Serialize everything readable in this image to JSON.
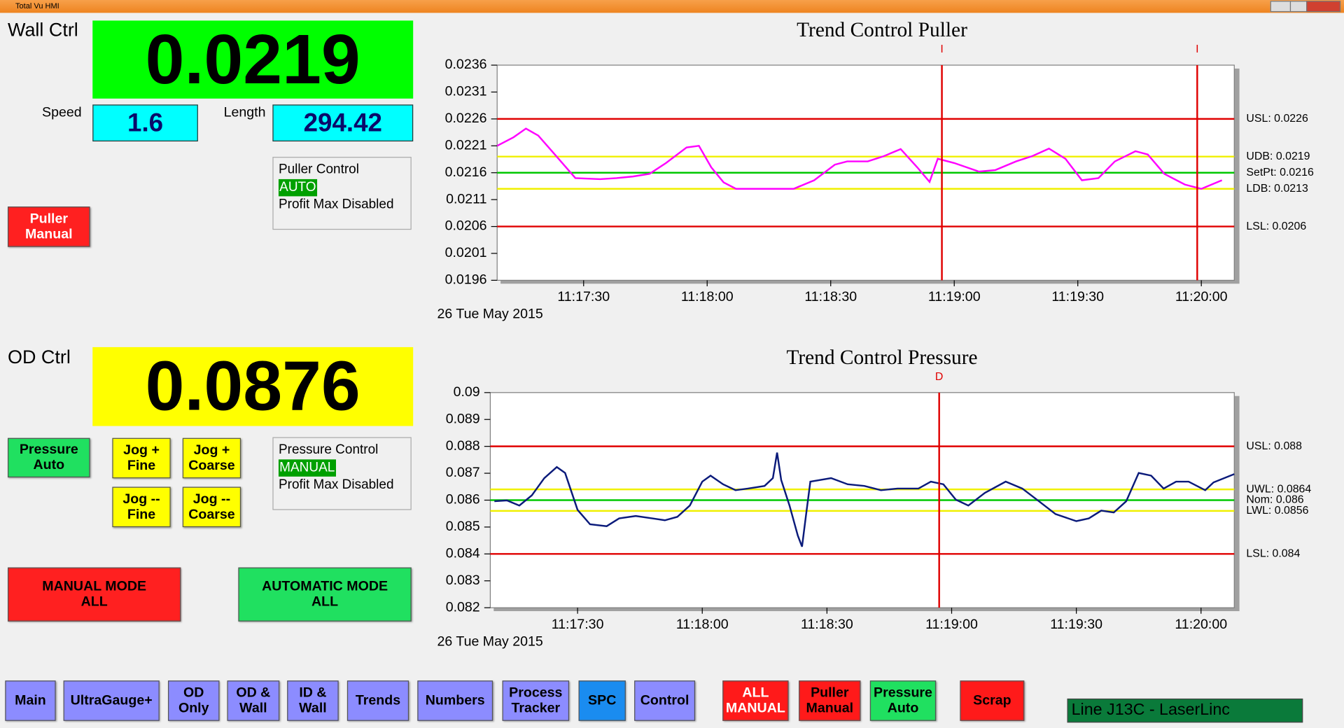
{
  "window": {
    "title": "Total Vu HMI"
  },
  "wall": {
    "label": "Wall Ctrl",
    "value": 0.0219,
    "speed_label": "Speed",
    "speed": 1.6,
    "length_label": "Length",
    "length": 294.42,
    "status": {
      "title": "Puller Control",
      "mode": "AUTO",
      "note": "Profit Max Disabled"
    },
    "button": [
      "Puller",
      "Manual"
    ]
  },
  "od": {
    "label": "OD Ctrl",
    "value": 0.0876,
    "status": {
      "title": "Pressure Control",
      "mode": "MANUAL",
      "note": "Profit Max Disabled"
    },
    "button": [
      "Pressure",
      "Auto"
    ],
    "jog": [
      [
        "Jog +",
        "Fine"
      ],
      [
        "Jog +",
        "Coarse"
      ],
      [
        "Jog --",
        "Fine"
      ],
      [
        "Jog --",
        "Coarse"
      ]
    ]
  },
  "modes": [
    [
      "MANUAL MODE",
      "ALL"
    ],
    [
      "AUTOMATIC MODE",
      "ALL"
    ]
  ],
  "nav": [
    [
      "Main"
    ],
    [
      "UltraGauge+"
    ],
    [
      "OD",
      "Only"
    ],
    [
      "OD &",
      "Wall"
    ],
    [
      "ID &",
      "Wall"
    ],
    [
      "Trends"
    ],
    [
      "Numbers"
    ],
    [
      "Process",
      "Tracker"
    ],
    [
      "SPC"
    ],
    [
      "Control"
    ]
  ],
  "actions": [
    [
      "ALL",
      "MANUAL"
    ],
    [
      "Puller",
      "Manual"
    ],
    [
      "Pressure",
      "Auto"
    ],
    [
      "Scrap"
    ]
  ],
  "line_label": "Line J13C - LaserLinc",
  "chart_data": [
    {
      "type": "line",
      "title": "Trend Control Puller",
      "date": "26 Tue May 2015",
      "color": "#ff00ff",
      "x": [
        "11:17:09",
        "11:17:13",
        "11:17:16",
        "11:17:19",
        "11:17:23",
        "11:17:28",
        "11:17:34",
        "11:17:38",
        "11:17:42",
        "11:17:46",
        "11:17:50",
        "11:17:55",
        "11:17:58",
        "11:18:01",
        "11:18:04",
        "11:18:07",
        "11:18:16",
        "11:18:21",
        "11:18:26",
        "11:18:31",
        "11:18:34",
        "11:18:39",
        "11:18:43",
        "11:18:47",
        "11:18:51",
        "11:18:54",
        "11:18:56",
        "11:19:00",
        "11:19:06",
        "11:19:10",
        "11:19:15",
        "11:19:19",
        "11:19:23",
        "11:19:27",
        "11:19:31",
        "11:19:35",
        "11:19:39",
        "11:19:44",
        "11:19:47",
        "11:19:51",
        "11:19:56",
        "11:20:00",
        "11:20:05"
      ],
      "values": [
        0.0221,
        0.02226,
        0.02242,
        0.02229,
        0.02194,
        0.0215,
        0.02148,
        0.0215,
        0.02153,
        0.02158,
        0.02178,
        0.02207,
        0.0221,
        0.0217,
        0.02142,
        0.0213,
        0.0213,
        0.0213,
        0.02146,
        0.02175,
        0.02181,
        0.02181,
        0.02191,
        0.02204,
        0.0217,
        0.02143,
        0.02186,
        0.02178,
        0.02162,
        0.02165,
        0.02181,
        0.02191,
        0.02205,
        0.02186,
        0.02146,
        0.0215,
        0.02181,
        0.022,
        0.02194,
        0.02158,
        0.02138,
        0.0213,
        0.02146
      ],
      "xlim": [
        "11:17:09",
        "11:20:08"
      ],
      "xticks": [
        "11:17:30",
        "11:18:00",
        "11:18:30",
        "11:19:00",
        "11:19:30",
        "11:20:00"
      ],
      "ylim": [
        0.0196,
        0.0236
      ],
      "yticks": [
        0.0236,
        0.0231,
        0.0226,
        0.0221,
        0.0216,
        0.0211,
        0.0206,
        0.0201,
        0.0196
      ],
      "limits": [
        {
          "label": "USL: 0.0226",
          "value": 0.0226,
          "color": "#e00000"
        },
        {
          "label": "UDB: 0.0219",
          "value": 0.0219,
          "color": "#f0f000"
        },
        {
          "label": "SetPt: 0.0216",
          "value": 0.0216,
          "color": "#00c800"
        },
        {
          "label": "LDB: 0.0213",
          "value": 0.0213,
          "color": "#f0f000"
        },
        {
          "label": "LSL: 0.0206",
          "value": 0.0206,
          "color": "#e00000"
        }
      ],
      "cursors": [
        {
          "x": "11:18:57",
          "label": "I"
        },
        {
          "x": "11:19:59",
          "label": "I"
        }
      ]
    },
    {
      "type": "line",
      "title": "Trend Control Pressure",
      "date": "26 Tue May 2015",
      "color": "#0a1a7a",
      "x": [
        "11:17:10",
        "11:17:13",
        "11:17:16",
        "11:17:19",
        "11:17:22",
        "11:17:25",
        "11:17:27",
        "11:17:30",
        "11:17:33",
        "11:17:37",
        "11:17:40",
        "11:17:44",
        "11:17:48",
        "11:17:51",
        "11:17:54",
        "11:17:57",
        "11:18:00",
        "11:18:02",
        "11:18:05",
        "11:18:08",
        "11:18:11",
        "11:18:15",
        "11:18:17",
        "11:18:18",
        "11:18:19",
        "11:18:21",
        "11:18:23",
        "11:18:24",
        "11:18:25",
        "11:18:26",
        "11:18:31",
        "11:18:35",
        "11:18:39",
        "11:18:43",
        "11:18:47",
        "11:18:52",
        "11:18:55",
        "11:18:58",
        "11:19:01",
        "11:19:04",
        "11:19:08",
        "11:19:13",
        "11:19:17",
        "11:19:21",
        "11:19:25",
        "11:19:30",
        "11:19:33",
        "11:19:36",
        "11:19:39",
        "11:19:42",
        "11:19:45",
        "11:19:48",
        "11:19:51",
        "11:19:54",
        "11:19:57",
        "11:20:01",
        "11:20:03",
        "11:20:08"
      ],
      "values": [
        0.08596,
        0.08599,
        0.0858,
        0.08618,
        0.08682,
        0.08723,
        0.08701,
        0.08564,
        0.0851,
        0.08503,
        0.08532,
        0.08541,
        0.08532,
        0.08525,
        0.08538,
        0.0858,
        0.08669,
        0.08691,
        0.08659,
        0.08637,
        0.08643,
        0.08653,
        0.08682,
        0.08777,
        0.08675,
        0.0858,
        0.08468,
        0.08427,
        0.08548,
        0.08669,
        0.08682,
        0.08659,
        0.08653,
        0.08637,
        0.08643,
        0.08643,
        0.08669,
        0.08659,
        0.08602,
        0.0858,
        0.08627,
        0.08669,
        0.08643,
        0.08596,
        0.08548,
        0.08522,
        0.08532,
        0.08561,
        0.08554,
        0.08596,
        0.08701,
        0.08691,
        0.08643,
        0.08669,
        0.08669,
        0.08637,
        0.08666,
        0.08697
      ],
      "xlim": [
        "11:17:09",
        "11:20:08"
      ],
      "xticks": [
        "11:17:30",
        "11:18:00",
        "11:18:30",
        "11:19:00",
        "11:19:30",
        "11:20:00"
      ],
      "ylim": [
        0.082,
        0.09
      ],
      "yticks": [
        0.09,
        0.089,
        0.088,
        0.087,
        0.086,
        0.085,
        0.084,
        0.083,
        0.082
      ],
      "limits": [
        {
          "label": "USL: 0.088",
          "value": 0.088,
          "color": "#e00000"
        },
        {
          "label": "UWL: 0.0864",
          "value": 0.0864,
          "color": "#f0f000"
        },
        {
          "label": "Nom: 0.086",
          "value": 0.086,
          "color": "#00c800"
        },
        {
          "label": "LWL: 0.0856",
          "value": 0.0856,
          "color": "#f0f000"
        },
        {
          "label": "LSL: 0.084",
          "value": 0.084,
          "color": "#e00000"
        }
      ],
      "cursors": [
        {
          "x": "11:18:57",
          "label": "D"
        }
      ]
    }
  ]
}
